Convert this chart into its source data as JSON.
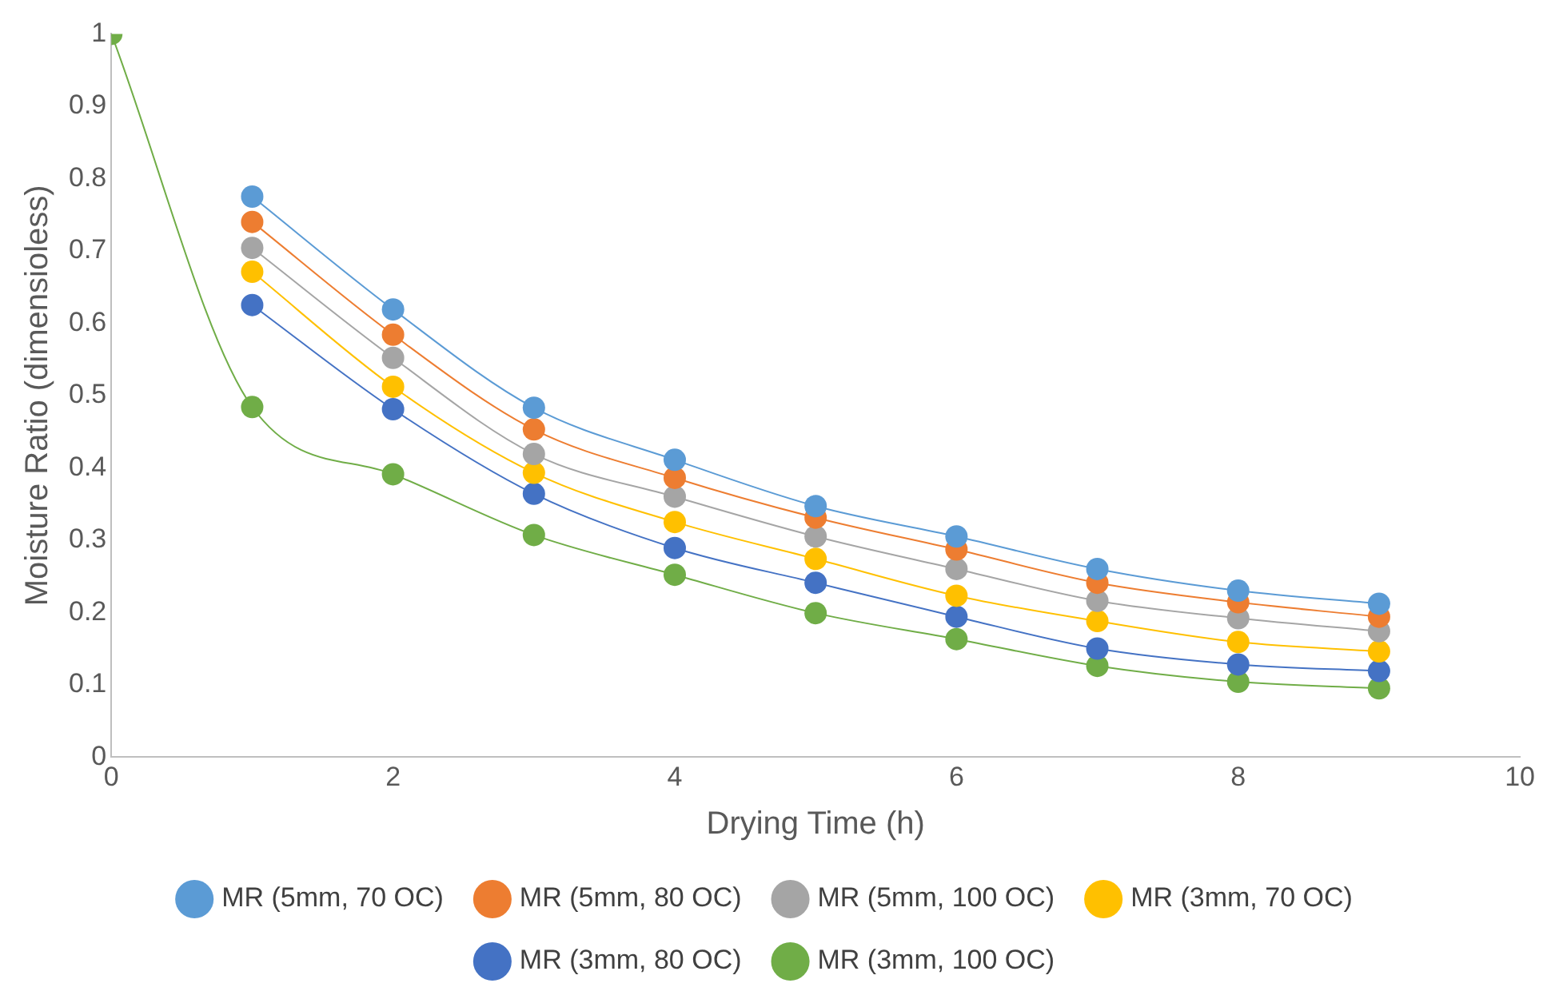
{
  "chart_data": {
    "type": "line",
    "xlabel": "Drying Time (h)",
    "ylabel": "Moisture Ratio (dimensioless)",
    "x": [
      0,
      1,
      2,
      3,
      4,
      5,
      6,
      7,
      8,
      9
    ],
    "xlim": [
      0,
      10
    ],
    "xticks": [
      0,
      2,
      4,
      6,
      8,
      10
    ],
    "ylim": [
      0,
      1
    ],
    "yticks": [
      0,
      0.1,
      0.2,
      0.3,
      0.4,
      0.5,
      0.6,
      0.7,
      0.8,
      0.9,
      1
    ],
    "grid": false,
    "legend": "bottom",
    "marker": "circle",
    "line_style": "solid",
    "series": [
      {
        "name": "MR (5mm, 70 OC)",
        "color": "#5b9bd5",
        "values": [
          null,
          0.775,
          0.619,
          0.483,
          0.411,
          0.347,
          0.305,
          0.26,
          0.23,
          0.212
        ]
      },
      {
        "name": "MR (5mm, 80 OC)",
        "color": "#ed7d31",
        "values": [
          null,
          0.74,
          0.584,
          0.453,
          0.386,
          0.331,
          0.287,
          0.241,
          0.214,
          0.194
        ]
      },
      {
        "name": "MR (5mm, 100 OC)",
        "color": "#a5a5a5",
        "values": [
          null,
          0.704,
          0.552,
          0.419,
          0.36,
          0.305,
          0.26,
          0.216,
          0.192,
          0.174
        ]
      },
      {
        "name": "MR (3mm, 70 OC)",
        "color": "#ffc000",
        "values": [
          null,
          0.671,
          0.512,
          0.393,
          0.325,
          0.274,
          0.223,
          0.188,
          0.159,
          0.146
        ]
      },
      {
        "name": "MR (3mm, 80 OC)",
        "color": "#4472c4",
        "values": [
          null,
          0.625,
          0.481,
          0.364,
          0.289,
          0.241,
          0.194,
          0.15,
          0.128,
          0.119
        ]
      },
      {
        "name": "MR (3mm, 100 OC)",
        "color": "#70ad47",
        "values": [
          1,
          0.484,
          0.391,
          0.307,
          0.252,
          0.199,
          0.163,
          0.126,
          0.104,
          0.095
        ]
      }
    ]
  }
}
